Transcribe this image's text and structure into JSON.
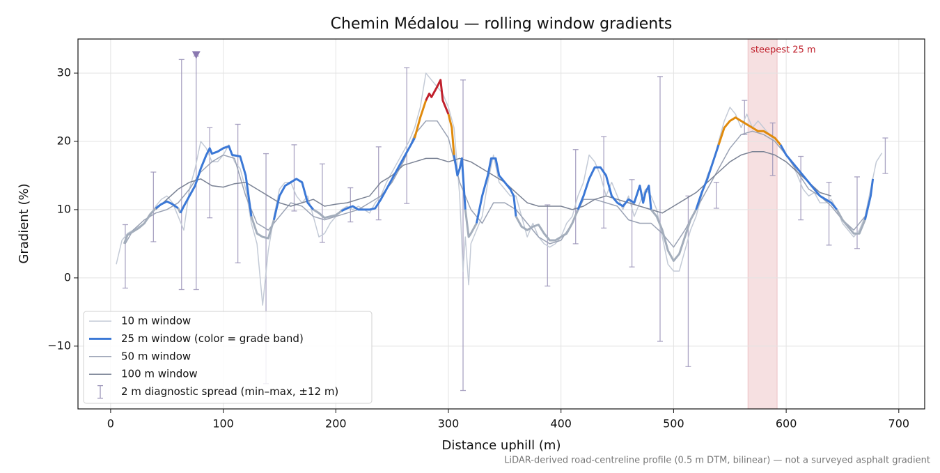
{
  "chart_data": {
    "type": "line",
    "title": "Chemin Médalou — rolling window gradients",
    "x_label": "Distance uphill (m)",
    "y_label": "Gradient (%)",
    "footnote": "LiDAR-derived road-centreline profile (0.5 m DTM, bilinear) — not a surveyed asphalt gradient",
    "xlim": [
      -29,
      723
    ],
    "ylim": [
      -19.2,
      35
    ],
    "xticks": [
      0,
      100,
      200,
      300,
      400,
      500,
      600,
      700
    ],
    "yticks": [
      {
        "value": -10,
        "label": "−10"
      },
      0,
      10,
      20,
      30
    ],
    "grid": true,
    "legend": "lower left",
    "series": [
      {
        "name": "10 m window",
        "color": "#c3cad6",
        "width": 1.5,
        "x": [
          5,
          10,
          15,
          20,
          25,
          30,
          35,
          40,
          45,
          50,
          55,
          60,
          65,
          70,
          75,
          80,
          85,
          90,
          95,
          100,
          105,
          110,
          115,
          120,
          125,
          130,
          135,
          140,
          145,
          150,
          155,
          160,
          165,
          170,
          175,
          180,
          185,
          190,
          195,
          200,
          205,
          210,
          215,
          220,
          225,
          230,
          235,
          240,
          245,
          250,
          255,
          260,
          265,
          270,
          275,
          280,
          285,
          290,
          295,
          300,
          305,
          310,
          313,
          315,
          318,
          320,
          325,
          330,
          335,
          340,
          345,
          350,
          355,
          360,
          365,
          370,
          375,
          380,
          385,
          390,
          395,
          400,
          405,
          410,
          415,
          420,
          425,
          430,
          435,
          440,
          445,
          450,
          455,
          460,
          465,
          470,
          475,
          480,
          485,
          490,
          495,
          500,
          505,
          510,
          515,
          520,
          525,
          530,
          535,
          540,
          545,
          550,
          555,
          560,
          565,
          570,
          575,
          580,
          585,
          590,
          595,
          600,
          605,
          610,
          615,
          620,
          625,
          630,
          635,
          640,
          645,
          650,
          655,
          660,
          665,
          670,
          675,
          680,
          685
        ],
        "values": [
          2,
          5.5,
          6.5,
          7,
          7.5,
          8,
          9,
          10.5,
          11.5,
          12,
          11,
          9,
          7,
          13,
          16,
          20,
          19,
          17,
          17,
          18,
          19.5,
          17,
          16,
          13,
          8,
          5,
          -4,
          4,
          9,
          13,
          14,
          14,
          12,
          11,
          12,
          9,
          6,
          6.5,
          8,
          9,
          10,
          10.5,
          10,
          10.5,
          10,
          9.5,
          11,
          12,
          14,
          15.5,
          17,
          18.5,
          20,
          22,
          25,
          30,
          29,
          28,
          27,
          25,
          22,
          12,
          1,
          6,
          -1,
          5,
          7,
          9,
          14,
          18,
          14,
          13,
          12,
          12,
          9,
          6,
          8,
          6,
          5,
          4.5,
          5,
          6,
          8,
          9,
          12,
          14,
          18,
          17,
          15,
          12,
          14,
          12,
          10,
          12,
          9,
          11,
          13,
          12,
          10,
          6,
          2,
          1,
          1,
          4,
          7,
          9,
          12,
          15,
          17,
          20,
          23,
          25,
          24,
          22,
          24,
          22,
          23,
          22,
          21,
          20,
          19,
          18,
          17,
          15,
          13,
          12,
          12.5,
          11,
          11,
          11.5,
          10,
          8,
          7,
          6,
          7,
          9,
          13,
          17,
          18.3
        ]
      },
      {
        "name": "25 m window (color = grade band)",
        "color": "#3b78d6",
        "width": 3,
        "band_edges": [
          10,
          20,
          25
        ],
        "band_colors": [
          "#a3adbb",
          "#3b78d6",
          "#e08a0c",
          "#c0202c"
        ],
        "x": [
          12,
          15,
          20,
          25,
          30,
          35,
          40,
          45,
          50,
          55,
          60,
          62,
          65,
          70,
          75,
          80,
          85,
          88,
          90,
          95,
          100,
          105,
          108,
          115,
          120,
          125,
          130,
          135,
          140,
          145,
          150,
          155,
          160,
          165,
          170,
          175,
          180,
          185,
          190,
          195,
          200,
          205,
          210,
          215,
          220,
          225,
          230,
          235,
          240,
          245,
          250,
          255,
          260,
          265,
          270,
          275,
          280,
          283,
          285,
          290,
          293,
          295,
          300,
          303,
          305,
          308,
          310,
          312,
          315,
          318,
          320,
          325,
          330,
          335,
          338,
          342,
          345,
          350,
          355,
          358,
          360,
          365,
          370,
          375,
          380,
          385,
          390,
          395,
          400,
          405,
          410,
          415,
          420,
          425,
          430,
          435,
          440,
          445,
          450,
          455,
          460,
          465,
          470,
          473,
          475,
          478,
          480,
          485,
          490,
          495,
          500,
          505,
          510,
          515,
          520,
          525,
          530,
          535,
          540,
          545,
          550,
          555,
          560,
          565,
          570,
          575,
          580,
          585,
          590,
          595,
          600,
          605,
          610,
          615,
          620,
          625,
          630,
          635,
          640,
          645,
          650,
          655,
          660,
          665,
          670,
          675,
          677
        ],
        "values": [
          5,
          6.3,
          6.8,
          7.3,
          8,
          9.3,
          10.2,
          10.8,
          11.2,
          10.8,
          10.2,
          9.5,
          10.5,
          12,
          13.5,
          16,
          18,
          19,
          18.2,
          18.5,
          19,
          19.3,
          18,
          17.8,
          15,
          9,
          6.5,
          6,
          5.8,
          8.5,
          12,
          13.5,
          14,
          14.5,
          14,
          11,
          10,
          9.5,
          8.8,
          9,
          9.2,
          9.8,
          10.2,
          10.5,
          10,
          10,
          10,
          10.2,
          11.5,
          13,
          14.5,
          16,
          17.5,
          19,
          20.5,
          23.5,
          26,
          27,
          26.5,
          28,
          29,
          26,
          24,
          22,
          18,
          15,
          16,
          17.5,
          10,
          6,
          6.5,
          8,
          12,
          15,
          17.5,
          17.5,
          15,
          14,
          13,
          12,
          9,
          7.5,
          7,
          7.5,
          7.8,
          6.5,
          5.5,
          5.5,
          6,
          6.5,
          8,
          10,
          12,
          14.5,
          16.2,
          16.2,
          15,
          12,
          11,
          10.5,
          11.5,
          11,
          13.5,
          11,
          12.5,
          13.5,
          10,
          9,
          7,
          4,
          2.5,
          3.5,
          6,
          8.5,
          10,
          12.5,
          14.5,
          17,
          19.5,
          22,
          23,
          23.5,
          23,
          22.5,
          22,
          21.5,
          21.5,
          21,
          20.5,
          19.5,
          18,
          17,
          16,
          15,
          14,
          13,
          12,
          11.5,
          11,
          10,
          8.5,
          7.5,
          6.5,
          6.5,
          8.5,
          12,
          14.5
        ]
      },
      {
        "name": "50 m window",
        "color": "#9aa2b4",
        "width": 1.5,
        "x": [
          13,
          20,
          30,
          40,
          50,
          60,
          70,
          80,
          90,
          100,
          110,
          120,
          130,
          140,
          150,
          160,
          170,
          180,
          190,
          200,
          210,
          220,
          230,
          240,
          250,
          260,
          270,
          280,
          290,
          300,
          310,
          320,
          330,
          340,
          350,
          360,
          370,
          380,
          390,
          400,
          410,
          420,
          430,
          440,
          450,
          460,
          470,
          480,
          490,
          500,
          510,
          520,
          530,
          540,
          550,
          560,
          570,
          580,
          590,
          600,
          610,
          620,
          630,
          640,
          650,
          660,
          670
        ],
        "values": [
          5,
          7,
          8.5,
          9.5,
          10,
          11,
          13,
          15.5,
          17,
          18,
          17.5,
          12,
          8,
          7,
          9,
          11,
          10.5,
          9,
          8.5,
          9,
          9.5,
          10,
          11,
          12,
          14,
          17,
          21,
          23,
          23,
          20.5,
          14,
          10,
          8,
          11,
          11,
          10,
          8,
          6,
          5,
          5.5,
          8,
          11.5,
          11.5,
          11,
          10.5,
          8.5,
          8,
          8,
          6.5,
          4.5,
          7,
          10,
          13,
          16,
          19,
          21,
          21.5,
          21,
          20,
          18,
          15.5,
          13,
          12,
          10.5,
          8.5,
          7,
          9
        ]
      },
      {
        "name": "100 m window",
        "color": "#7a8294",
        "width": 1.5,
        "x": [
          40,
          50,
          60,
          70,
          80,
          90,
          100,
          110,
          120,
          130,
          140,
          150,
          160,
          170,
          180,
          190,
          200,
          210,
          220,
          230,
          240,
          250,
          260,
          270,
          280,
          290,
          300,
          310,
          320,
          330,
          340,
          350,
          360,
          370,
          380,
          390,
          400,
          410,
          420,
          430,
          440,
          450,
          460,
          470,
          480,
          490,
          500,
          510,
          520,
          530,
          540,
          550,
          560,
          570,
          580,
          590,
          600,
          610,
          620,
          630,
          640
        ],
        "values": [
          10,
          11.5,
          13,
          14,
          14.5,
          13.5,
          13.3,
          13.8,
          14,
          13,
          12,
          11,
          10.5,
          11,
          11.5,
          10.5,
          10.8,
          11,
          11.5,
          12,
          14,
          15,
          16.5,
          17,
          17.5,
          17.5,
          17,
          17.5,
          17,
          16,
          15,
          14,
          12.5,
          11,
          10.5,
          10.5,
          10.5,
          10,
          10.5,
          11.5,
          12,
          11.5,
          11,
          10.5,
          10,
          9.5,
          10.5,
          11.5,
          12.5,
          14,
          15.5,
          17,
          18,
          18.5,
          18.5,
          18,
          17,
          15.5,
          14,
          12.5,
          12
        ]
      }
    ],
    "error_bars": {
      "name": "2 m diagnostic spread (min–max, ±12 m)",
      "color": "#9b94b8",
      "x": [
        13,
        38,
        63,
        76,
        88,
        113,
        138,
        163,
        188,
        213,
        238,
        263,
        313,
        388,
        413,
        438,
        463,
        488,
        513,
        538,
        563,
        588,
        613,
        638,
        663,
        688
      ],
      "low": [
        -1.5,
        5.3,
        -1.7,
        -1.7,
        8.8,
        2.2,
        -15.5,
        9.8,
        5.2,
        8.2,
        8.5,
        10.9,
        -16.5,
        -1.2,
        5,
        7.3,
        1.6,
        -9.3,
        -13,
        10.2,
        21,
        15,
        8.5,
        4.8,
        4.3,
        15.3
      ],
      "high": [
        7.8,
        15.5,
        32,
        32.5,
        22,
        22.5,
        18.2,
        19.5,
        16.7,
        13.2,
        19.2,
        30.8,
        29,
        10.7,
        18.8,
        20.7,
        14.4,
        29.5,
        12,
        14,
        26,
        22.7,
        17.8,
        14,
        14.8,
        20.5
      ]
    },
    "marker": {
      "x": 76,
      "y": 32.6,
      "color": "#8a78b0"
    },
    "span": {
      "x": [
        566,
        592
      ],
      "label": "steepest 25 m",
      "color": "#c0202c"
    }
  }
}
